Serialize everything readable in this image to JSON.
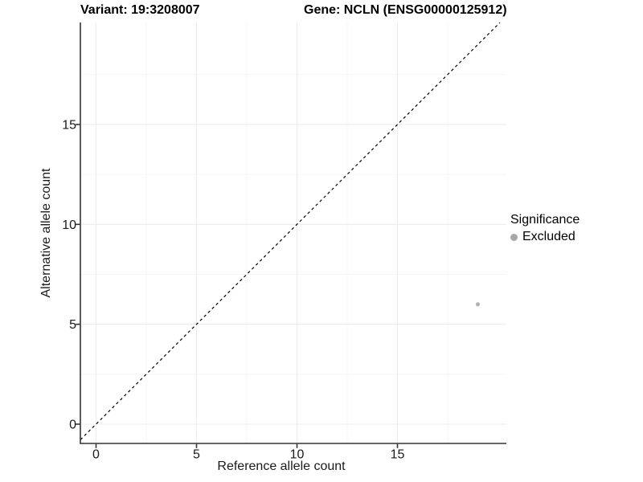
{
  "chart_data": {
    "type": "scatter",
    "title_left": "Variant: 19:3208007",
    "title_right": "Gene: NCLN (ENSG00000125912)",
    "xlabel": "Reference allele count",
    "ylabel": "Alternative allele count",
    "xlim": [
      -0.78,
      20.42
    ],
    "ylim": [
      -0.96,
      20.1
    ],
    "x_ticks": [
      0,
      5,
      10,
      15
    ],
    "y_ticks": [
      0,
      5,
      10,
      15
    ],
    "x_minor_ticks": [
      2.5,
      7.5,
      12.5,
      17.5
    ],
    "y_minor_ticks": [
      2.5,
      7.5,
      12.5,
      17.5
    ],
    "grid": true,
    "reference_line": {
      "kind": "identity",
      "style": "dashed",
      "color": "#000000"
    },
    "series": [
      {
        "name": "Excluded",
        "color": "#b4b4b4",
        "points": [
          {
            "x": 19,
            "y": 6
          }
        ]
      }
    ],
    "legend": {
      "title": "Significance",
      "position": "right",
      "items": [
        {
          "label": "Excluded",
          "color": "#a8a8a8"
        }
      ]
    },
    "colors": {
      "background": "#ffffff",
      "axis_line": "#333333",
      "grid_major": "#ececec",
      "grid_minor": "#f5f5f5",
      "tick_text": "#1a1a1a"
    }
  }
}
